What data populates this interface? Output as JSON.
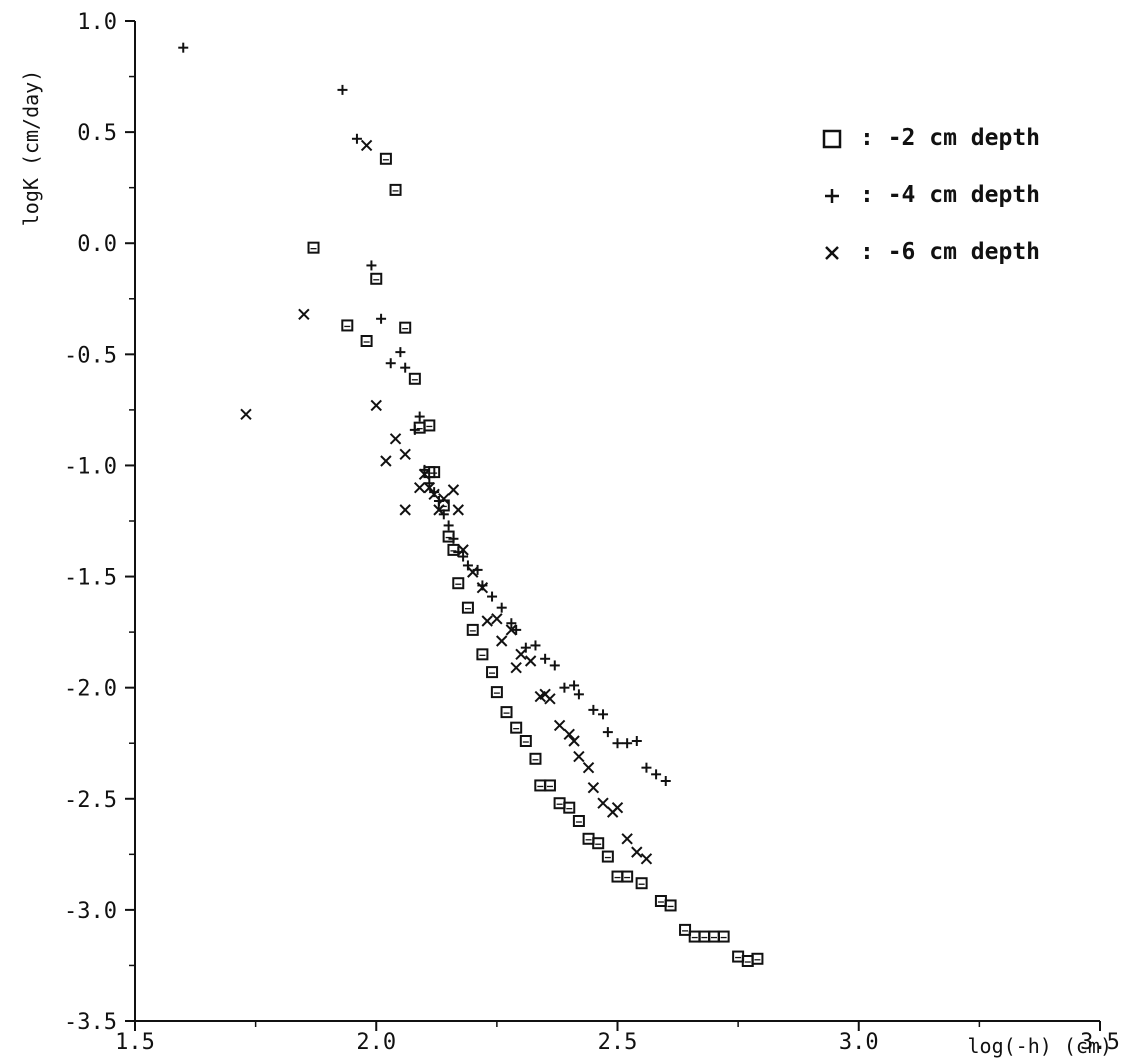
{
  "chart_data": {
    "type": "scatter",
    "title": "",
    "xlabel": "log(-h) (cm)",
    "ylabel": "logK (cm/day)",
    "xlim": [
      1.5,
      3.5
    ],
    "ylim": [
      -3.5,
      1.0
    ],
    "x_ticks": [
      "1.5",
      "2.0",
      "2.5",
      "3.0",
      "3.5"
    ],
    "y_ticks": [
      "1.0",
      "0.5",
      "0.0",
      "-0.5",
      "-1.0",
      "-1.5",
      "-2.0",
      "-2.5",
      "-3.0",
      "-3.5"
    ],
    "x_tick_values": [
      1.5,
      2.0,
      2.5,
      3.0,
      3.5
    ],
    "y_tick_values": [
      1.0,
      0.5,
      0.0,
      -0.5,
      -1.0,
      -1.5,
      -2.0,
      -2.5,
      -3.0,
      -3.5
    ],
    "grid": false,
    "legend_position": "top-right",
    "series": [
      {
        "name": "-2 cm depth",
        "marker": "square",
        "legend_symbol": "□",
        "legend_text": ":  -2 cm depth",
        "points": [
          [
            2.02,
            0.38
          ],
          [
            2.04,
            0.24
          ],
          [
            1.87,
            -0.02
          ],
          [
            2.0,
            -0.16
          ],
          [
            1.94,
            -0.37
          ],
          [
            2.06,
            -0.38
          ],
          [
            1.98,
            -0.44
          ],
          [
            2.08,
            -0.61
          ],
          [
            2.09,
            -0.83
          ],
          [
            2.11,
            -0.82
          ],
          [
            2.11,
            -1.03
          ],
          [
            2.12,
            -1.03
          ],
          [
            2.14,
            -1.18
          ],
          [
            2.15,
            -1.32
          ],
          [
            2.16,
            -1.38
          ],
          [
            2.17,
            -1.53
          ],
          [
            2.19,
            -1.64
          ],
          [
            2.2,
            -1.74
          ],
          [
            2.22,
            -1.85
          ],
          [
            2.24,
            -1.93
          ],
          [
            2.25,
            -2.02
          ],
          [
            2.27,
            -2.11
          ],
          [
            2.29,
            -2.18
          ],
          [
            2.31,
            -2.24
          ],
          [
            2.33,
            -2.32
          ],
          [
            2.34,
            -2.44
          ],
          [
            2.36,
            -2.44
          ],
          [
            2.38,
            -2.52
          ],
          [
            2.4,
            -2.54
          ],
          [
            2.42,
            -2.6
          ],
          [
            2.44,
            -2.68
          ],
          [
            2.46,
            -2.7
          ],
          [
            2.48,
            -2.76
          ],
          [
            2.5,
            -2.85
          ],
          [
            2.52,
            -2.85
          ],
          [
            2.55,
            -2.88
          ],
          [
            2.59,
            -2.96
          ],
          [
            2.61,
            -2.98
          ],
          [
            2.64,
            -3.09
          ],
          [
            2.66,
            -3.12
          ],
          [
            2.68,
            -3.12
          ],
          [
            2.7,
            -3.12
          ],
          [
            2.72,
            -3.12
          ],
          [
            2.75,
            -3.21
          ],
          [
            2.77,
            -3.23
          ],
          [
            2.79,
            -3.22
          ]
        ]
      },
      {
        "name": "-4 cm depth",
        "marker": "plus",
        "legend_symbol": "+",
        "legend_text": ":  -4 cm depth",
        "points": [
          [
            1.6,
            0.88
          ],
          [
            1.93,
            0.69
          ],
          [
            1.96,
            0.47
          ],
          [
            1.99,
            -0.1
          ],
          [
            2.01,
            -0.34
          ],
          [
            2.03,
            -0.54
          ],
          [
            2.05,
            -0.49
          ],
          [
            2.06,
            -0.56
          ],
          [
            2.08,
            -0.84
          ],
          [
            2.09,
            -0.78
          ],
          [
            2.1,
            -1.02
          ],
          [
            2.11,
            -1.08
          ],
          [
            2.12,
            -1.12
          ],
          [
            2.13,
            -1.16
          ],
          [
            2.14,
            -1.22
          ],
          [
            2.15,
            -1.27
          ],
          [
            2.16,
            -1.33
          ],
          [
            2.17,
            -1.39
          ],
          [
            2.18,
            -1.41
          ],
          [
            2.19,
            -1.45
          ],
          [
            2.21,
            -1.47
          ],
          [
            2.22,
            -1.54
          ],
          [
            2.24,
            -1.59
          ],
          [
            2.26,
            -1.64
          ],
          [
            2.28,
            -1.71
          ],
          [
            2.29,
            -1.74
          ],
          [
            2.31,
            -1.82
          ],
          [
            2.33,
            -1.81
          ],
          [
            2.35,
            -1.87
          ],
          [
            2.37,
            -1.9
          ],
          [
            2.39,
            -2.0
          ],
          [
            2.41,
            -1.99
          ],
          [
            2.42,
            -2.03
          ],
          [
            2.45,
            -2.1
          ],
          [
            2.47,
            -2.12
          ],
          [
            2.48,
            -2.2
          ],
          [
            2.5,
            -2.25
          ],
          [
            2.52,
            -2.25
          ],
          [
            2.54,
            -2.24
          ],
          [
            2.56,
            -2.36
          ],
          [
            2.58,
            -2.39
          ],
          [
            2.6,
            -2.42
          ]
        ]
      },
      {
        "name": "-6 cm depth",
        "marker": "x",
        "legend_symbol": "x",
        "legend_text": ":  -6 cm depth",
        "points": [
          [
            1.98,
            0.44
          ],
          [
            1.85,
            -0.32
          ],
          [
            1.73,
            -0.77
          ],
          [
            2.0,
            -0.73
          ],
          [
            2.04,
            -0.88
          ],
          [
            2.06,
            -0.95
          ],
          [
            2.02,
            -0.98
          ],
          [
            2.09,
            -1.1
          ],
          [
            2.06,
            -1.2
          ],
          [
            2.1,
            -1.04
          ],
          [
            2.11,
            -1.1
          ],
          [
            2.12,
            -1.13
          ],
          [
            2.13,
            -1.2
          ],
          [
            2.14,
            -1.15
          ],
          [
            2.16,
            -1.11
          ],
          [
            2.17,
            -1.2
          ],
          [
            2.18,
            -1.38
          ],
          [
            2.2,
            -1.48
          ],
          [
            2.22,
            -1.55
          ],
          [
            2.23,
            -1.7
          ],
          [
            2.25,
            -1.69
          ],
          [
            2.26,
            -1.79
          ],
          [
            2.28,
            -1.74
          ],
          [
            2.29,
            -1.91
          ],
          [
            2.3,
            -1.85
          ],
          [
            2.32,
            -1.88
          ],
          [
            2.34,
            -2.04
          ],
          [
            2.35,
            -2.03
          ],
          [
            2.36,
            -2.05
          ],
          [
            2.38,
            -2.17
          ],
          [
            2.4,
            -2.21
          ],
          [
            2.41,
            -2.24
          ],
          [
            2.42,
            -2.31
          ],
          [
            2.44,
            -2.36
          ],
          [
            2.45,
            -2.45
          ],
          [
            2.47,
            -2.52
          ],
          [
            2.49,
            -2.56
          ],
          [
            2.5,
            -2.54
          ],
          [
            2.52,
            -2.68
          ],
          [
            2.54,
            -2.74
          ],
          [
            2.56,
            -2.77
          ]
        ]
      }
    ]
  }
}
